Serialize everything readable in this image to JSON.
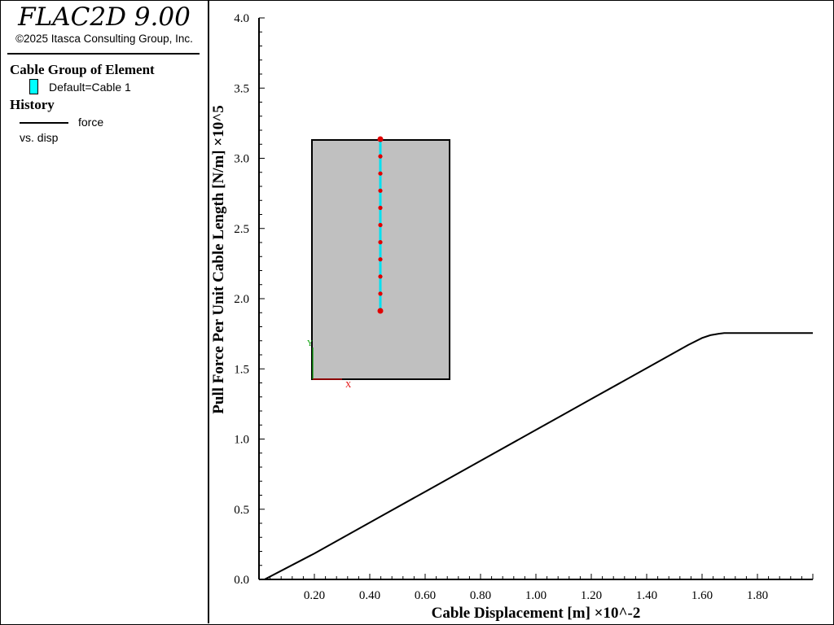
{
  "app": {
    "title": "FLAC2D 9.00",
    "copyright": "©2025 Itasca Consulting Group, Inc."
  },
  "legend": {
    "cable_group_heading": "Cable Group of Element",
    "cable_group_entry": "Default=Cable 1",
    "cable_group_color": "#00ffff",
    "history_heading": "History",
    "history_entry_line1": "force",
    "history_entry_line2": "vs. disp"
  },
  "inset": {
    "block_color": "#c0c0c0",
    "cable_color": "#00e0f0",
    "node_color": "#e00000",
    "axis_y_label": "Y",
    "axis_x_label": "X",
    "node_count": 11
  },
  "chart_data": {
    "type": "line",
    "xlabel": "Cable Displacement [m] ×10^-2",
    "ylabel": "Pull Force Per Unit Cable Length [N/m] ×10^5",
    "xlim": [
      0,
      2.0
    ],
    "ylim": [
      0,
      4.0
    ],
    "x_ticks": [
      0.2,
      0.4,
      0.6,
      0.8,
      1.0,
      1.2,
      1.4,
      1.6,
      1.8
    ],
    "x_tick_labels": [
      "0.20",
      "0.40",
      "0.60",
      "0.80",
      "1.00",
      "1.20",
      "1.40",
      "1.60",
      "1.80"
    ],
    "y_ticks": [
      0.0,
      0.5,
      1.0,
      1.5,
      2.0,
      2.5,
      3.0,
      3.5,
      4.0
    ],
    "y_tick_labels": [
      "0.0",
      "0.5",
      "1.0",
      "1.5",
      "2.0",
      "2.5",
      "3.0",
      "3.5",
      "4.0"
    ],
    "grid": false,
    "series": [
      {
        "name": "force",
        "color": "#000000",
        "x": [
          0.0,
          0.02,
          0.2,
          0.4,
          0.6,
          0.8,
          1.0,
          1.2,
          1.4,
          1.5,
          1.55,
          1.6,
          1.63,
          1.66,
          1.68,
          1.7,
          2.0
        ],
        "y": [
          0.0,
          0.0,
          0.185,
          0.405,
          0.625,
          0.845,
          1.065,
          1.285,
          1.505,
          1.615,
          1.67,
          1.72,
          1.74,
          1.75,
          1.755,
          1.755,
          1.755
        ]
      }
    ]
  }
}
